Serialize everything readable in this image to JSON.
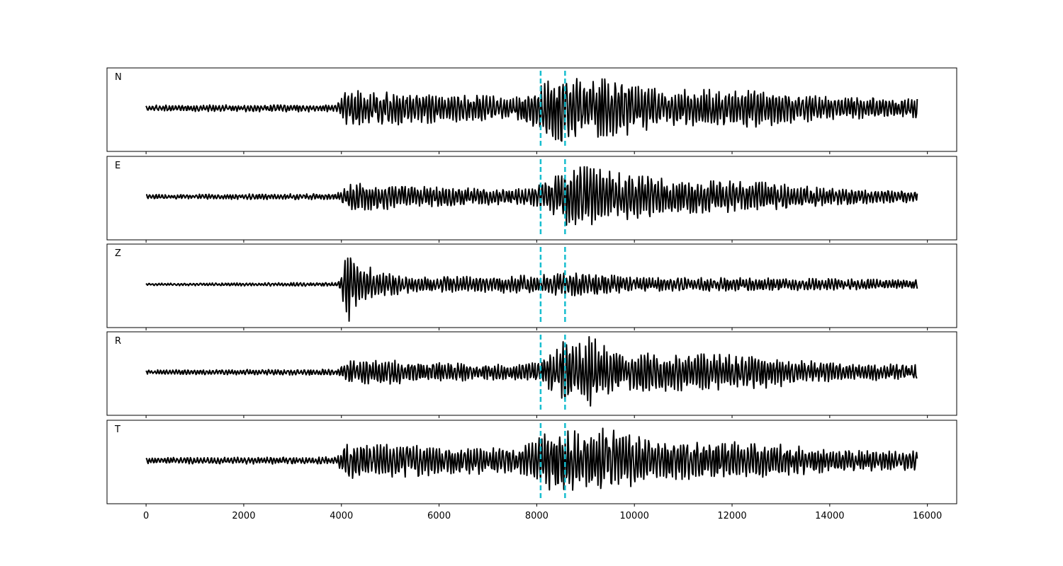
{
  "chart_data": {
    "type": "line",
    "title": "",
    "xlabel": "",
    "ylabel": "",
    "xlim": [
      -800,
      16600
    ],
    "x_ticks": [
      0,
      2000,
      4000,
      6000,
      8000,
      10000,
      12000,
      14000,
      16000
    ],
    "x_tick_labels": [
      "0",
      "2000",
      "4000",
      "6000",
      "8000",
      "10000",
      "12000",
      "14000",
      "16000"
    ],
    "x_range": [
      0,
      15800
    ],
    "grid": false,
    "line_color": "#000000",
    "marker_color": "#17becf",
    "markers": [
      8080,
      8580
    ],
    "marker_style": "dashed vertical line",
    "panels": [
      {
        "label": "N",
        "series_color": "#000000",
        "envelope": [
          [
            0,
            0.08
          ],
          [
            3900,
            0.1
          ],
          [
            4150,
            0.55
          ],
          [
            4500,
            0.4
          ],
          [
            5200,
            0.45
          ],
          [
            6000,
            0.38
          ],
          [
            7600,
            0.3
          ],
          [
            8000,
            0.55
          ],
          [
            8500,
            0.95
          ],
          [
            9000,
            0.7
          ],
          [
            9300,
            0.9
          ],
          [
            10500,
            0.5
          ],
          [
            12500,
            0.5
          ],
          [
            14000,
            0.3
          ],
          [
            15800,
            0.25
          ]
        ],
        "description_values": {
          "onset_x": 4150,
          "peak_x": 8450
        }
      },
      {
        "label": "E",
        "series_color": "#000000",
        "envelope": [
          [
            0,
            0.06
          ],
          [
            3900,
            0.08
          ],
          [
            4150,
            0.35
          ],
          [
            5000,
            0.35
          ],
          [
            6000,
            0.25
          ],
          [
            7600,
            0.2
          ],
          [
            8300,
            0.4
          ],
          [
            8500,
            0.75
          ],
          [
            9000,
            0.8
          ],
          [
            9600,
            0.65
          ],
          [
            10800,
            0.45
          ],
          [
            12500,
            0.4
          ],
          [
            14000,
            0.22
          ],
          [
            15800,
            0.15
          ]
        ],
        "description_values": {
          "onset_x": 4150,
          "peak_x": 9100
        }
      },
      {
        "label": "Z",
        "series_color": "#000000",
        "envelope": [
          [
            0,
            0.03
          ],
          [
            3900,
            0.05
          ],
          [
            4000,
            0.3
          ],
          [
            4150,
            1.0
          ],
          [
            4400,
            0.6
          ],
          [
            4800,
            0.3
          ],
          [
            6000,
            0.2
          ],
          [
            7000,
            0.22
          ],
          [
            8000,
            0.25
          ],
          [
            8600,
            0.3
          ],
          [
            9200,
            0.3
          ],
          [
            10000,
            0.18
          ],
          [
            12000,
            0.18
          ],
          [
            14000,
            0.15
          ],
          [
            15800,
            0.12
          ]
        ],
        "description_values": {
          "onset_x": 4150,
          "peak_x": 4150
        }
      },
      {
        "label": "R",
        "series_color": "#000000",
        "envelope": [
          [
            0,
            0.06
          ],
          [
            3900,
            0.08
          ],
          [
            4150,
            0.3
          ],
          [
            5000,
            0.32
          ],
          [
            6000,
            0.25
          ],
          [
            7600,
            0.2
          ],
          [
            8200,
            0.4
          ],
          [
            8500,
            0.8
          ],
          [
            9100,
            0.95
          ],
          [
            9600,
            0.6
          ],
          [
            10800,
            0.5
          ],
          [
            12500,
            0.45
          ],
          [
            14000,
            0.25
          ],
          [
            15800,
            0.2
          ]
        ],
        "description_values": {
          "onset_x": 4150,
          "peak_x": 9100
        }
      },
      {
        "label": "T",
        "series_color": "#000000",
        "envelope": [
          [
            0,
            0.08
          ],
          [
            3900,
            0.1
          ],
          [
            4150,
            0.55
          ],
          [
            4500,
            0.4
          ],
          [
            5200,
            0.45
          ],
          [
            6000,
            0.38
          ],
          [
            7600,
            0.35
          ],
          [
            8000,
            0.6
          ],
          [
            8500,
            0.95
          ],
          [
            9000,
            0.7
          ],
          [
            9300,
            0.9
          ],
          [
            10500,
            0.5
          ],
          [
            12500,
            0.5
          ],
          [
            14000,
            0.3
          ],
          [
            15800,
            0.25
          ]
        ],
        "description_values": {
          "onset_x": 4150,
          "peak_x": 8450
        }
      }
    ]
  }
}
